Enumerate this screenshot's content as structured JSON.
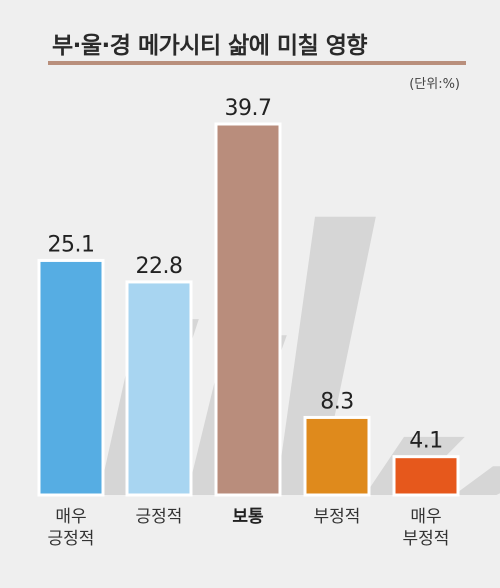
{
  "title": "부·울·경 메가시티 삶에 미칠 영향",
  "unit": "(단위:%)",
  "chart_data": {
    "type": "bar",
    "title": "부·울·경 메가시티 삶에 미칠 영향",
    "unit": "(단위:%)",
    "categories": [
      [
        "매우",
        "긍정적"
      ],
      [
        "긍정적"
      ],
      [
        "보통"
      ],
      [
        "부정적"
      ],
      [
        "매우",
        "부정적"
      ]
    ],
    "values": [
      25.1,
      22.8,
      39.7,
      8.3,
      4.1
    ],
    "colors": [
      "#56ade3",
      "#a8d5f1",
      "#b98d7c",
      "#df8a1c",
      "#e6581c"
    ],
    "highlight_index": 2,
    "ylim": [
      0,
      39.7
    ],
    "grid": false,
    "legend": "none"
  }
}
